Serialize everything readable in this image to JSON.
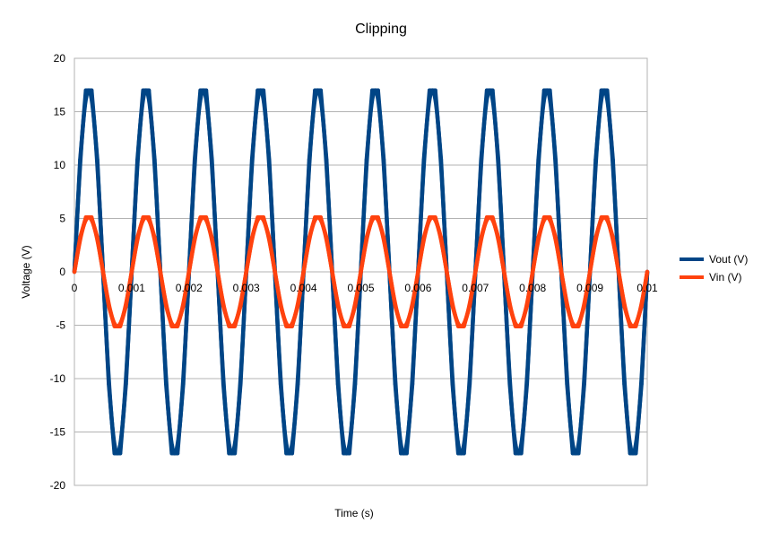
{
  "chart_data": {
    "type": "scatter",
    "title": "Clipping",
    "xlabel": "Time (s)",
    "ylabel": "Voltage (V)",
    "xlim": [
      0,
      0.01
    ],
    "ylim": [
      -20,
      20
    ],
    "x_ticks": [
      "0",
      "0.001",
      "0.002",
      "0.003",
      "0.004",
      "0.005",
      "0.006",
      "0.007",
      "0.008",
      "0.009",
      "0.01"
    ],
    "y_ticks": [
      "20",
      "15",
      "10",
      "5",
      "0",
      "-5",
      "-10",
      "-15",
      "-20"
    ],
    "grid": "horizontal",
    "legend_position": "right",
    "series": [
      {
        "name": "Vout (V)",
        "color": "#004586",
        "x": [
          0,
          0.0001,
          0.0002,
          0.0003,
          0.0004,
          0.0005,
          0.0006,
          0.0007,
          0.0008,
          0.0009,
          0.001,
          0.0011,
          0.0012,
          0.0013,
          0.0014,
          0.0015,
          0.0016,
          0.0017,
          0.0018,
          0.0019,
          0.002,
          0.0021,
          0.0022,
          0.0023,
          0.0024,
          0.0025,
          0.0026,
          0.0027,
          0.0028,
          0.0029,
          0.003,
          0.0031,
          0.0032,
          0.0033,
          0.0034,
          0.0035,
          0.0036,
          0.0037,
          0.0038,
          0.0039,
          0.004,
          0.0041,
          0.0042,
          0.0043,
          0.0044,
          0.0045,
          0.0046,
          0.0047,
          0.0048,
          0.0049,
          0.005,
          0.0051,
          0.0052,
          0.0053,
          0.0054,
          0.0055,
          0.0056,
          0.0057,
          0.0058,
          0.0059,
          0.006,
          0.0061,
          0.0062,
          0.0063,
          0.0064,
          0.0065,
          0.0066,
          0.0067,
          0.0068,
          0.0069,
          0.007,
          0.0071,
          0.0072,
          0.0073,
          0.0074,
          0.0075,
          0.0076,
          0.0077,
          0.0078,
          0.0079,
          0.008,
          0.0081,
          0.0082,
          0.0083,
          0.0084,
          0.0085,
          0.0086,
          0.0087,
          0.0088,
          0.0089,
          0.009,
          0.0091,
          0.0092,
          0.0093,
          0.0094,
          0.0095,
          0.0096,
          0.0097,
          0.0098,
          0.0099,
          0.01
        ],
        "y": [
          0,
          10.5,
          17.0,
          17.0,
          10.5,
          0,
          -10.5,
          -17.0,
          -17.0,
          -10.5,
          0,
          10.5,
          17.0,
          17.0,
          10.5,
          0,
          -10.5,
          -17.0,
          -17.0,
          -10.5,
          0,
          10.5,
          17.0,
          17.0,
          10.5,
          0,
          -10.5,
          -17.0,
          -17.0,
          -10.5,
          0,
          10.5,
          17.0,
          17.0,
          10.5,
          0,
          -10.5,
          -17.0,
          -17.0,
          -10.5,
          0,
          10.5,
          17.0,
          17.0,
          10.5,
          0,
          -10.5,
          -17.0,
          -17.0,
          -10.5,
          0,
          10.5,
          17.0,
          17.0,
          10.5,
          0,
          -10.5,
          -17.0,
          -17.0,
          -10.5,
          0,
          10.5,
          17.0,
          17.0,
          10.5,
          0,
          -10.5,
          -17.0,
          -17.0,
          -10.5,
          0,
          10.5,
          17.0,
          17.0,
          10.5,
          0,
          -10.5,
          -17.0,
          -17.0,
          -10.5,
          0,
          10.5,
          17.0,
          17.0,
          10.5,
          0,
          -10.5,
          -17.0,
          -17.0,
          -10.5,
          0,
          10.5,
          17.0,
          17.0,
          10.5,
          0,
          -10.5,
          -17.0,
          -17.0,
          -10.5,
          0
        ]
      },
      {
        "name": "Vin (V)",
        "color": "#ff420e",
        "x": [
          0,
          0.0001,
          0.0002,
          0.0003,
          0.0004,
          0.0005,
          0.0006,
          0.0007,
          0.0008,
          0.0009,
          0.001,
          0.0011,
          0.0012,
          0.0013,
          0.0014,
          0.0015,
          0.0016,
          0.0017,
          0.0018,
          0.0019,
          0.002,
          0.0021,
          0.0022,
          0.0023,
          0.0024,
          0.0025,
          0.0026,
          0.0027,
          0.0028,
          0.0029,
          0.003,
          0.0031,
          0.0032,
          0.0033,
          0.0034,
          0.0035,
          0.0036,
          0.0037,
          0.0038,
          0.0039,
          0.004,
          0.0041,
          0.0042,
          0.0043,
          0.0044,
          0.0045,
          0.0046,
          0.0047,
          0.0048,
          0.0049,
          0.005,
          0.0051,
          0.0052,
          0.0053,
          0.0054,
          0.0055,
          0.0056,
          0.0057,
          0.0058,
          0.0059,
          0.006,
          0.0061,
          0.0062,
          0.0063,
          0.0064,
          0.0065,
          0.0066,
          0.0067,
          0.0068,
          0.0069,
          0.007,
          0.0071,
          0.0072,
          0.0073,
          0.0074,
          0.0075,
          0.0076,
          0.0077,
          0.0078,
          0.0079,
          0.008,
          0.0081,
          0.0082,
          0.0083,
          0.0084,
          0.0085,
          0.0086,
          0.0087,
          0.0088,
          0.0089,
          0.009,
          0.0091,
          0.0092,
          0.0093,
          0.0094,
          0.0095,
          0.0096,
          0.0097,
          0.0098,
          0.0099,
          0.01
        ],
        "y": [
          0,
          3.2,
          5.1,
          5.1,
          3.2,
          0,
          -3.2,
          -5.1,
          -5.1,
          -3.2,
          0,
          3.2,
          5.1,
          5.1,
          3.2,
          0,
          -3.2,
          -5.1,
          -5.1,
          -3.2,
          0,
          3.2,
          5.1,
          5.1,
          3.2,
          0,
          -3.2,
          -5.1,
          -5.1,
          -3.2,
          0,
          3.2,
          5.1,
          5.1,
          3.2,
          0,
          -3.2,
          -5.1,
          -5.1,
          -3.2,
          0,
          3.2,
          5.1,
          5.1,
          3.2,
          0,
          -3.2,
          -5.1,
          -5.1,
          -3.2,
          0,
          3.2,
          5.1,
          5.1,
          3.2,
          0,
          -3.2,
          -5.1,
          -5.1,
          -3.2,
          0,
          3.2,
          5.1,
          5.1,
          3.2,
          0,
          -3.2,
          -5.1,
          -5.1,
          -3.2,
          0,
          3.2,
          5.1,
          5.1,
          3.2,
          0,
          -3.2,
          -5.1,
          -5.1,
          -3.2,
          0,
          3.2,
          5.1,
          5.1,
          3.2,
          0,
          -3.2,
          -5.1,
          -5.1,
          -3.2,
          0,
          3.2,
          5.1,
          5.1,
          3.2,
          0,
          -3.2,
          -5.1,
          -5.1,
          -3.2,
          0
        ]
      }
    ]
  }
}
